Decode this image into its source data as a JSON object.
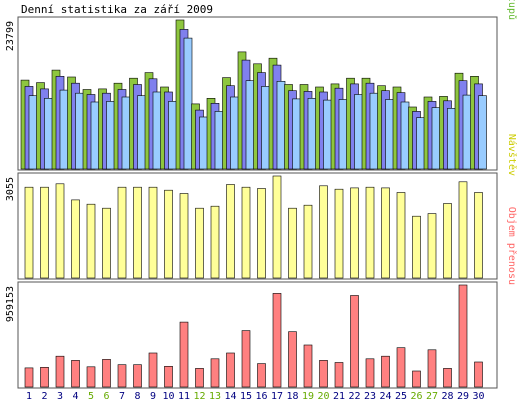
{
  "title": "Denní statistika za září 2009",
  "chart_data": [
    {
      "type": "bar",
      "panel": "top",
      "ymax_label": "23799",
      "ylim": [
        0,
        23799
      ],
      "side_label_parts": [
        {
          "text": "Stránek",
          "color": "#3399ff"
        },
        {
          "text": "/",
          "color": "#555555"
        },
        {
          "text": "Souborů",
          "color": "#6666cc"
        },
        {
          "text": "/",
          "color": "#555555"
        },
        {
          "text": "Přístupů",
          "color": "#66bb33"
        }
      ],
      "categories": [
        "1",
        "2",
        "3",
        "4",
        "5",
        "6",
        "7",
        "8",
        "9",
        "10",
        "11",
        "12",
        "13",
        "14",
        "15",
        "16",
        "17",
        "18",
        "19",
        "20",
        "21",
        "22",
        "23",
        "24",
        "25",
        "26",
        "27",
        "28",
        "29",
        "30"
      ],
      "series": [
        {
          "name": "Přístupů",
          "color": "#8ec63f",
          "values": [
            14200,
            13800,
            15800,
            14700,
            12700,
            12800,
            13700,
            14500,
            15400,
            13100,
            23800,
            10400,
            11300,
            14600,
            18700,
            16800,
            17700,
            13500,
            13500,
            13100,
            13600,
            14500,
            14500,
            13300,
            13100,
            9900,
            11500,
            11600,
            15300,
            14800
          ]
        },
        {
          "name": "Souborů",
          "color": "#8080ee",
          "values": [
            13200,
            12800,
            14800,
            13700,
            11900,
            12100,
            12700,
            13500,
            14400,
            12300,
            22300,
            9400,
            10500,
            13300,
            17400,
            15400,
            16600,
            12500,
            12400,
            12300,
            12900,
            13600,
            13700,
            12500,
            12200,
            9200,
            10800,
            10900,
            14100,
            13600
          ]
        },
        {
          "name": "Stránek",
          "color": "#99ccff",
          "values": [
            11700,
            11300,
            12600,
            12100,
            10700,
            10800,
            11500,
            11700,
            12300,
            10800,
            20900,
            8300,
            9200,
            11500,
            14100,
            13200,
            14000,
            11200,
            11300,
            11000,
            11100,
            11900,
            12100,
            11100,
            10700,
            8200,
            9800,
            9700,
            11800,
            11700
          ]
        }
      ]
    },
    {
      "type": "bar",
      "panel": "middle",
      "ymax_label": "3055",
      "ylim": [
        0,
        3055
      ],
      "side_label_parts": [
        {
          "text": "Návštěv",
          "color": "#cccc00"
        }
      ],
      "categories": [
        "1",
        "2",
        "3",
        "4",
        "5",
        "6",
        "7",
        "8",
        "9",
        "10",
        "11",
        "12",
        "13",
        "14",
        "15",
        "16",
        "17",
        "18",
        "19",
        "20",
        "21",
        "22",
        "23",
        "24",
        "25",
        "26",
        "27",
        "28",
        "29",
        "30"
      ],
      "series": [
        {
          "name": "Návštěv",
          "color": "#ffff99",
          "values": [
            2720,
            2720,
            2820,
            2340,
            2210,
            2090,
            2720,
            2720,
            2720,
            2630,
            2530,
            2090,
            2150,
            2800,
            2720,
            2680,
            3055,
            2090,
            2180,
            2760,
            2660,
            2700,
            2720,
            2700,
            2560,
            1850,
            1930,
            2230,
            2880,
            2560
          ]
        }
      ]
    },
    {
      "type": "bar",
      "panel": "bottom",
      "ymax_label": "959153",
      "ylim": [
        0,
        959153
      ],
      "side_label_parts": [
        {
          "text": "Objem přenosu",
          "color": "#ff6666"
        }
      ],
      "categories": [
        "1",
        "2",
        "3",
        "4",
        "5",
        "6",
        "7",
        "8",
        "9",
        "10",
        "11",
        "12",
        "13",
        "14",
        "15",
        "16",
        "17",
        "18",
        "19",
        "20",
        "21",
        "22",
        "23",
        "24",
        "25",
        "26",
        "27",
        "28",
        "29",
        "30"
      ],
      "series": [
        {
          "name": "Objem přenosu",
          "color": "#ff8080",
          "values": [
            180000,
            185000,
            290000,
            250000,
            190000,
            260000,
            210000,
            210000,
            320000,
            195000,
            610000,
            175000,
            265000,
            320000,
            530000,
            220000,
            880000,
            520000,
            395000,
            250000,
            230000,
            860000,
            265000,
            290000,
            370000,
            150000,
            350000,
            175000,
            959153,
            235000
          ]
        }
      ]
    }
  ],
  "colors": {
    "frame": "#555555",
    "bar_outline": "#000000",
    "weekday_day_label": "#000080",
    "weekend_day_label": "#66aa00"
  },
  "weekend_days": [
    "5",
    "6",
    "12",
    "13",
    "19",
    "20",
    "26",
    "27"
  ]
}
